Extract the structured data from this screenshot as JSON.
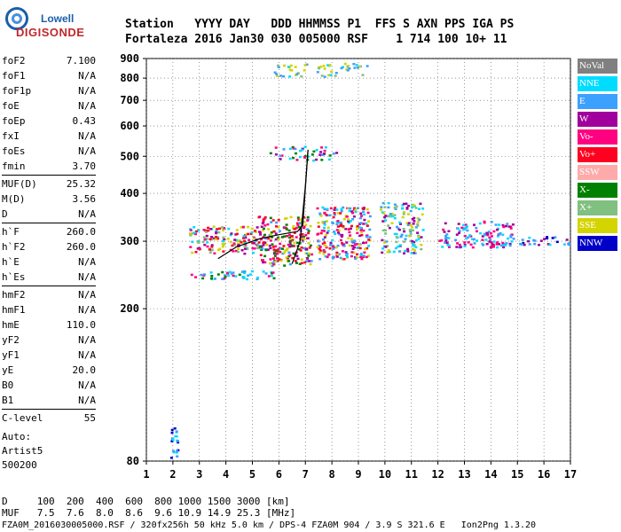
{
  "logo": {
    "line1": "Lowell",
    "line2": "DIGISONDE"
  },
  "header": {
    "line1": "Station   YYYY DAY   DDD HHMMSS P1  FFS S AXN PPS IGA PS",
    "line2": "Fortaleza 2016 Jan30 030 005000 RSF    1 714 100 10+ 11"
  },
  "params": [
    {
      "group": [
        {
          "label": "foF2",
          "value": "7.100"
        },
        {
          "label": "foF1",
          "value": "N/A"
        },
        {
          "label": "foF1p",
          "value": "N/A"
        },
        {
          "label": "foE",
          "value": "N/A"
        },
        {
          "label": "foEp",
          "value": "0.43"
        },
        {
          "label": "fxI",
          "value": "N/A"
        },
        {
          "label": "foEs",
          "value": "N/A"
        },
        {
          "label": "fmin",
          "value": "3.70"
        }
      ]
    },
    {
      "group": [
        {
          "label": "MUF(D)",
          "value": "25.32"
        },
        {
          "label": "M(D)",
          "value": "3.56"
        },
        {
          "label": "D",
          "value": "N/A"
        }
      ]
    },
    {
      "group": [
        {
          "label": "h`F",
          "value": "260.0"
        },
        {
          "label": "h`F2",
          "value": "260.0"
        },
        {
          "label": "h`E",
          "value": "N/A"
        },
        {
          "label": "h`Es",
          "value": "N/A"
        }
      ]
    },
    {
      "group": [
        {
          "label": "hmF2",
          "value": "N/A"
        },
        {
          "label": "hmF1",
          "value": "N/A"
        },
        {
          "label": "hmE",
          "value": "110.0"
        },
        {
          "label": "yF2",
          "value": "N/A"
        },
        {
          "label": "yF1",
          "value": "N/A"
        },
        {
          "label": "yE",
          "value": "20.0"
        },
        {
          "label": "B0",
          "value": "N/A"
        },
        {
          "label": "B1",
          "value": "N/A"
        }
      ]
    },
    {
      "group": [
        {
          "label": "C-level",
          "value": "55"
        }
      ]
    }
  ],
  "auto": {
    "line1": "Auto:",
    "line2": "Artist5",
    "line3": "500200"
  },
  "bottom": {
    "d_line": "D     100  200  400  600  800 1000 1500 3000 [km]",
    "muf_line": "MUF   7.5  7.6  8.0  8.6  9.6 10.9 14.9 25.3 [MHz]",
    "file_line": "FZA0M_2016030005000.RSF / 320fx256h 50 kHz 5.0 km / DPS-4 FZA0M 904 / 3.9 S 321.6 E   Ion2Png 1.3.20"
  },
  "legend": [
    {
      "label": "NoVal",
      "color": "#808080"
    },
    {
      "label": "NNE",
      "color": "#00dcff"
    },
    {
      "label": "E",
      "color": "#3ca0ff"
    },
    {
      "label": "W",
      "color": "#a0009c"
    },
    {
      "label": "Vo-",
      "color": "#ff0080"
    },
    {
      "label": "Vo+",
      "color": "#ff0020"
    },
    {
      "label": "SSW",
      "color": "#ffaaaa"
    },
    {
      "label": "X-",
      "color": "#008000"
    },
    {
      "label": "X+",
      "color": "#80c080"
    },
    {
      "label": "SSE",
      "color": "#d4d400"
    },
    {
      "label": "NNW",
      "color": "#0000c8"
    }
  ],
  "chart_data": {
    "type": "scatter",
    "xlim": [
      1,
      17
    ],
    "ylim": [
      80,
      900
    ],
    "x_ticks": [
      1,
      2,
      3,
      4,
      5,
      6,
      7,
      8,
      9,
      10,
      11,
      12,
      13,
      14,
      15,
      16,
      17
    ],
    "y_ticks": [
      80,
      200,
      300,
      400,
      500,
      600,
      700,
      800,
      900
    ],
    "y_scale": "log",
    "grid": true,
    "regions": [
      {
        "x": [
          1.85,
          2.15
        ],
        "y": [
          80,
          100
        ],
        "colors": [
          "E",
          "NNE",
          "NNW"
        ],
        "density": 0.5
      },
      {
        "x": [
          2.6,
          5.2
        ],
        "y": [
          280,
          330
        ],
        "colors": [
          "Vo+",
          "Vo-",
          "W",
          "SSE",
          "X+",
          "NNE"
        ],
        "density": 0.55
      },
      {
        "x": [
          5.2,
          7.2
        ],
        "y": [
          260,
          350
        ],
        "colors": [
          "Vo+",
          "Vo-",
          "W",
          "SSE",
          "E",
          "X-"
        ],
        "density": 0.6
      },
      {
        "x": [
          7.4,
          9.4
        ],
        "y": [
          270,
          370
        ],
        "colors": [
          "Vo+",
          "Vo-",
          "SSE",
          "W",
          "E",
          "NNE"
        ],
        "density": 0.6
      },
      {
        "x": [
          9.8,
          11.4
        ],
        "y": [
          280,
          380
        ],
        "colors": [
          "NNE",
          "E",
          "SSE",
          "W",
          "X+"
        ],
        "density": 0.45
      },
      {
        "x": [
          12.0,
          14.8
        ],
        "y": [
          290,
          340
        ],
        "colors": [
          "NNE",
          "E",
          "W",
          "Vo-"
        ],
        "density": 0.45
      },
      {
        "x": [
          14.8,
          17.0
        ],
        "y": [
          295,
          310
        ],
        "colors": [
          "W",
          "NNW",
          "E",
          "NNE"
        ],
        "density": 0.4
      },
      {
        "x": [
          2.6,
          5.8
        ],
        "y": [
          240,
          252
        ],
        "colors": [
          "E",
          "Vo-",
          "NNE",
          "X-"
        ],
        "density": 0.5
      },
      {
        "x": [
          5.6,
          8.2
        ],
        "y": [
          490,
          535
        ],
        "colors": [
          "E",
          "NNE",
          "X-",
          "Vo-",
          "W"
        ],
        "density": 0.3
      },
      {
        "x": [
          5.8,
          9.3
        ],
        "y": [
          810,
          880
        ],
        "colors": [
          "E",
          "NNE",
          "X+",
          "SSE"
        ],
        "density": 0.3
      }
    ],
    "trace": [
      [
        3.7,
        270
      ],
      [
        4.4,
        290
      ],
      [
        5.3,
        305
      ],
      [
        6.0,
        312
      ],
      [
        6.7,
        318
      ],
      [
        6.9,
        330
      ],
      [
        7.1,
        520
      ]
    ],
    "trace2": [
      [
        6.5,
        262
      ],
      [
        6.8,
        300
      ],
      [
        7.0,
        420
      ],
      [
        7.1,
        520
      ]
    ]
  }
}
